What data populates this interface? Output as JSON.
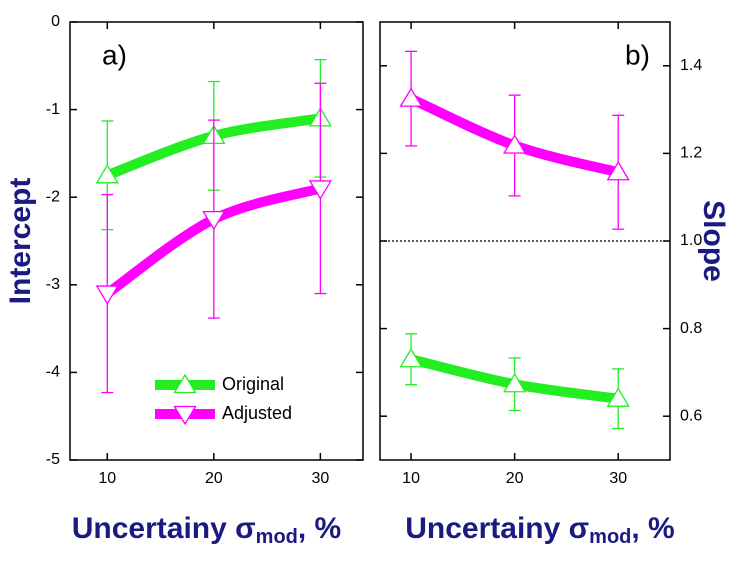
{
  "chart_data": [
    {
      "type": "line",
      "panel_label": "a)",
      "x": [
        10,
        20,
        30
      ],
      "xlim": [
        6.5,
        34
      ],
      "xticks": [
        10,
        20,
        30
      ],
      "ylim": [
        -5,
        0
      ],
      "yticks": [
        -5,
        -4,
        -3,
        -2,
        -1,
        0
      ],
      "y_side": "left",
      "y_label": "Intercept",
      "x_label_parts": [
        "Uncertainy σ",
        "mod",
        ", %"
      ],
      "legend": "lower center",
      "series": [
        {
          "name": "Original",
          "color": "#22ee22",
          "marker": "triangle-up",
          "values": [
            -1.75,
            -1.3,
            -1.1
          ],
          "errors": [
            0.62,
            0.62,
            0.67
          ]
        },
        {
          "name": "Adjusted",
          "color": "#ff00ff",
          "marker": "triangle-down",
          "values": [
            -3.1,
            -2.25,
            -1.9
          ],
          "errors": [
            1.13,
            1.13,
            1.2
          ]
        }
      ]
    },
    {
      "type": "line",
      "panel_label": "b)",
      "x": [
        10,
        20,
        30
      ],
      "xlim": [
        7,
        35
      ],
      "xticks": [
        10,
        20,
        30
      ],
      "ylim": [
        0.5,
        1.5
      ],
      "yticks": [
        0.6,
        0.8,
        {
          "value": 1,
          "label": "1.0"
        },
        1.2,
        1.4
      ],
      "y_side": "right",
      "y_label": "Slope",
      "x_label_parts": [
        "Uncertainy σ",
        "mod",
        ", %"
      ],
      "reference_line": 1,
      "series": [
        {
          "color": "#ff00ff",
          "marker": "triangle-up",
          "values": [
            1.325,
            1.218,
            1.157
          ],
          "errors": [
            0.108,
            0.115,
            0.13
          ]
        },
        {
          "color": "#22ee22",
          "marker": "triangle-up",
          "values": [
            0.73,
            0.673,
            0.64
          ],
          "errors": [
            0.058,
            0.06,
            0.068
          ]
        }
      ]
    }
  ]
}
